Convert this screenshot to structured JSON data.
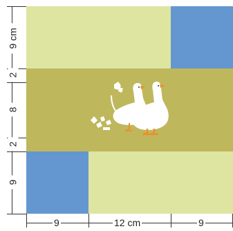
{
  "colors": {
    "light_green": "#DDE5A1",
    "olive": "#BFB75C",
    "blue": "#6497CF",
    "motif_white": "#FFFFFF",
    "motif_orange": "#E8912B"
  },
  "panels": [
    {
      "id": "top-left",
      "color": "light_green"
    },
    {
      "id": "top-right",
      "color": "blue"
    },
    {
      "id": "middle-band",
      "color": "olive"
    },
    {
      "id": "bottom-left",
      "color": "blue"
    },
    {
      "id": "bottom-right",
      "color": "light_green"
    }
  ],
  "motif": {
    "icon": "geese-cross-stitch-icon"
  },
  "dimensions": {
    "vertical": [
      {
        "label": "9 cm"
      },
      {
        "label": "2"
      },
      {
        "label": "8"
      },
      {
        "label": "2"
      },
      {
        "label": "9"
      }
    ],
    "horizontal": [
      {
        "label": "9"
      },
      {
        "label": "12 cm"
      },
      {
        "label": "9"
      }
    ]
  }
}
